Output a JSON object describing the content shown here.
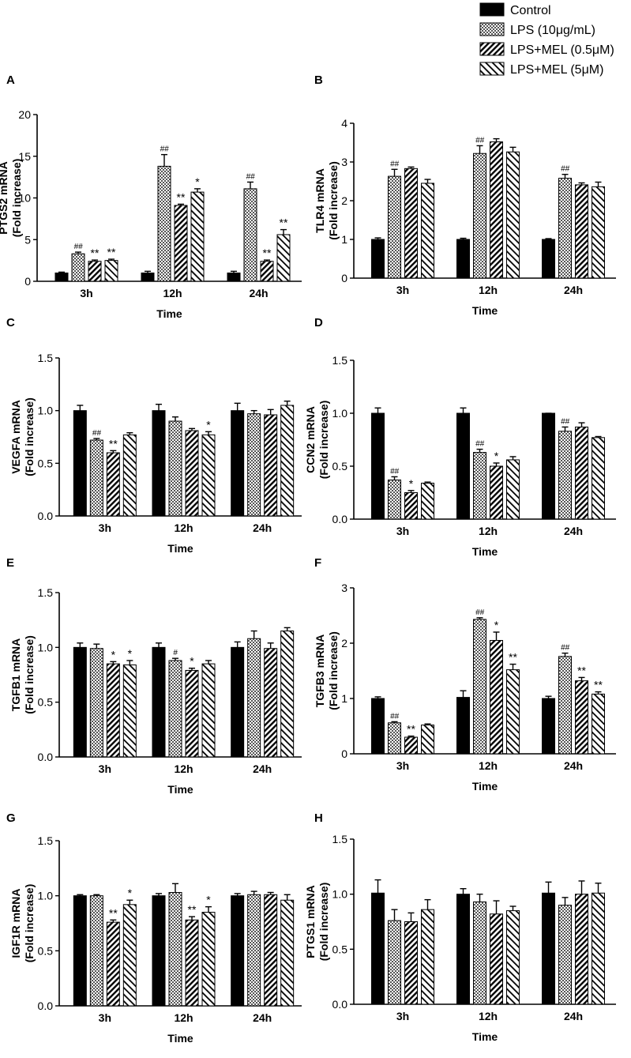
{
  "legend": {
    "entries": [
      {
        "label": "Control",
        "pattern": "solid"
      },
      {
        "label": "LPS (10μg/mL)",
        "pattern": "checker"
      },
      {
        "label": "LPS+MEL (0.5μM)",
        "pattern": "diag-dense"
      },
      {
        "label": "LPS+MEL (5μM)",
        "pattern": "diag-sparse"
      }
    ]
  },
  "colors": {
    "bar_fill": "#000000",
    "background": "#ffffff",
    "axis": "#000000"
  },
  "chart_data": [
    {
      "type": "bar",
      "panel": "A",
      "title": "",
      "xlabel": "Time",
      "ylabel_lines": [
        "PTGS2 mRNA",
        "(Fold increase)"
      ],
      "categories": [
        "3h",
        "12h",
        "24h"
      ],
      "ylim": [
        0,
        20
      ],
      "yticks": [
        "0",
        "5",
        "10",
        "15",
        "20"
      ],
      "series": [
        {
          "name": "Control",
          "values": [
            1.0,
            1.0,
            1.0
          ],
          "errors": [
            0.1,
            0.2,
            0.2
          ]
        },
        {
          "name": "LPS (10μg/mL)",
          "values": [
            3.3,
            13.8,
            11.1
          ],
          "errors": [
            0.2,
            1.4,
            0.8
          ]
        },
        {
          "name": "LPS+MEL (0.5μM)",
          "values": [
            2.4,
            9.1,
            2.4
          ],
          "errors": [
            0.15,
            0.15,
            0.15
          ]
        },
        {
          "name": "LPS+MEL (5μM)",
          "values": [
            2.5,
            10.7,
            5.6
          ],
          "errors": [
            0.15,
            0.4,
            0.6
          ]
        }
      ],
      "annotations": [
        {
          "group": 0,
          "series": 1,
          "text": "##"
        },
        {
          "group": 0,
          "series": 2,
          "text": "**"
        },
        {
          "group": 0,
          "series": 3,
          "text": "**"
        },
        {
          "group": 1,
          "series": 1,
          "text": "##"
        },
        {
          "group": 1,
          "series": 2,
          "text": "**"
        },
        {
          "group": 1,
          "series": 3,
          "text": "*"
        },
        {
          "group": 2,
          "series": 1,
          "text": "##"
        },
        {
          "group": 2,
          "series": 2,
          "text": "**"
        },
        {
          "group": 2,
          "series": 3,
          "text": "**"
        }
      ]
    },
    {
      "type": "bar",
      "panel": "B",
      "title": "",
      "xlabel": "Time",
      "ylabel_lines": [
        "TLR4 mRNA",
        "(Fold increase)"
      ],
      "categories": [
        "3h",
        "12h",
        "24h"
      ],
      "ylim": [
        0,
        4
      ],
      "yticks": [
        "0",
        "1",
        "2",
        "3",
        "4"
      ],
      "series": [
        {
          "name": "Control",
          "values": [
            1.0,
            1.0,
            1.0
          ],
          "errors": [
            0.04,
            0.03,
            0.02
          ]
        },
        {
          "name": "LPS (10μg/mL)",
          "values": [
            2.63,
            3.22,
            2.58
          ],
          "errors": [
            0.18,
            0.2,
            0.1
          ]
        },
        {
          "name": "LPS+MEL (0.5μM)",
          "values": [
            2.83,
            3.52,
            2.41
          ],
          "errors": [
            0.04,
            0.08,
            0.05
          ]
        },
        {
          "name": "LPS+MEL (5μM)",
          "values": [
            2.45,
            3.26,
            2.36
          ],
          "errors": [
            0.1,
            0.12,
            0.12
          ]
        }
      ],
      "annotations": [
        {
          "group": 0,
          "series": 1,
          "text": "##"
        },
        {
          "group": 1,
          "series": 1,
          "text": "##"
        },
        {
          "group": 2,
          "series": 1,
          "text": "##"
        }
      ]
    },
    {
      "type": "bar",
      "panel": "C",
      "title": "",
      "xlabel": "Time",
      "ylabel_lines": [
        "VEGFA mRNA",
        "(Fold increase)"
      ],
      "categories": [
        "3h",
        "12h",
        "24h"
      ],
      "ylim": [
        0,
        1.5
      ],
      "yticks": [
        "0.0",
        "0.5",
        "1.0",
        "1.5"
      ],
      "series": [
        {
          "name": "Control",
          "values": [
            1.0,
            1.0,
            1.0
          ],
          "errors": [
            0.05,
            0.06,
            0.07
          ]
        },
        {
          "name": "LPS (10μg/mL)",
          "values": [
            0.72,
            0.9,
            0.97
          ],
          "errors": [
            0.015,
            0.04,
            0.03
          ]
        },
        {
          "name": "LPS+MEL (0.5μM)",
          "values": [
            0.6,
            0.81,
            0.96
          ],
          "errors": [
            0.02,
            0.02,
            0.05
          ]
        },
        {
          "name": "LPS+MEL (5μM)",
          "values": [
            0.77,
            0.77,
            1.05
          ],
          "errors": [
            0.02,
            0.03,
            0.04
          ]
        }
      ],
      "annotations": [
        {
          "group": 0,
          "series": 1,
          "text": "##"
        },
        {
          "group": 0,
          "series": 2,
          "text": "**"
        },
        {
          "group": 1,
          "series": 3,
          "text": "*"
        }
      ]
    },
    {
      "type": "bar",
      "panel": "D",
      "title": "",
      "xlabel": "Time",
      "ylabel_lines": [
        "CCN2 mRNA",
        "(Fold increase)"
      ],
      "categories": [
        "3h",
        "12h",
        "24h"
      ],
      "ylim": [
        0,
        1.5
      ],
      "yticks": [
        "0.0",
        "0.5",
        "1.0",
        "1.5"
      ],
      "series": [
        {
          "name": "Control",
          "values": [
            1.0,
            1.0,
            1.0
          ],
          "errors": [
            0.05,
            0.05,
            0.0
          ]
        },
        {
          "name": "LPS (10μg/mL)",
          "values": [
            0.37,
            0.63,
            0.83
          ],
          "errors": [
            0.03,
            0.03,
            0.04
          ]
        },
        {
          "name": "LPS+MEL (0.5μM)",
          "values": [
            0.25,
            0.5,
            0.87
          ],
          "errors": [
            0.02,
            0.03,
            0.04
          ]
        },
        {
          "name": "LPS+MEL (5μM)",
          "values": [
            0.34,
            0.56,
            0.77
          ],
          "errors": [
            0.01,
            0.03,
            0.01
          ]
        }
      ],
      "annotations": [
        {
          "group": 0,
          "series": 1,
          "text": "##"
        },
        {
          "group": 0,
          "series": 2,
          "text": "*"
        },
        {
          "group": 1,
          "series": 1,
          "text": "##"
        },
        {
          "group": 1,
          "series": 2,
          "text": "*"
        },
        {
          "group": 2,
          "series": 1,
          "text": "##"
        }
      ]
    },
    {
      "type": "bar",
      "panel": "E",
      "title": "",
      "xlabel": "Time",
      "ylabel_lines": [
        "TGFB1 mRNA",
        "(Fold increase)"
      ],
      "categories": [
        "3h",
        "12h",
        "24h"
      ],
      "ylim": [
        0,
        1.5
      ],
      "yticks": [
        "0.0",
        "0.5",
        "1.0",
        "1.5"
      ],
      "series": [
        {
          "name": "Control",
          "values": [
            1.0,
            1.0,
            1.0
          ],
          "errors": [
            0.04,
            0.04,
            0.05
          ]
        },
        {
          "name": "LPS (10μg/mL)",
          "values": [
            0.99,
            0.88,
            1.08
          ],
          "errors": [
            0.04,
            0.02,
            0.07
          ]
        },
        {
          "name": "LPS+MEL (0.5μM)",
          "values": [
            0.85,
            0.79,
            0.99
          ],
          "errors": [
            0.02,
            0.02,
            0.05
          ]
        },
        {
          "name": "LPS+MEL (5μM)",
          "values": [
            0.84,
            0.85,
            1.15
          ],
          "errors": [
            0.04,
            0.03,
            0.03
          ]
        }
      ],
      "annotations": [
        {
          "group": 0,
          "series": 2,
          "text": "*"
        },
        {
          "group": 0,
          "series": 3,
          "text": "*"
        },
        {
          "group": 1,
          "series": 1,
          "text": "#"
        },
        {
          "group": 1,
          "series": 2,
          "text": "*"
        }
      ]
    },
    {
      "type": "bar",
      "panel": "F",
      "title": "",
      "xlabel": "Time",
      "ylabel_lines": [
        "TGFB3 mRNA",
        "(Fold increase)"
      ],
      "categories": [
        "3h",
        "12h",
        "24h"
      ],
      "ylim": [
        0,
        3
      ],
      "yticks": [
        "0",
        "1",
        "2",
        "3"
      ],
      "series": [
        {
          "name": "Control",
          "values": [
            1.0,
            1.02,
            1.0
          ],
          "errors": [
            0.03,
            0.12,
            0.04
          ]
        },
        {
          "name": "LPS (10μg/mL)",
          "values": [
            0.56,
            2.43,
            1.76
          ],
          "errors": [
            0.02,
            0.03,
            0.06
          ]
        },
        {
          "name": "LPS+MEL (0.5μM)",
          "values": [
            0.3,
            2.05,
            1.32
          ],
          "errors": [
            0.02,
            0.15,
            0.06
          ]
        },
        {
          "name": "LPS+MEL (5μM)",
          "values": [
            0.52,
            1.52,
            1.08
          ],
          "errors": [
            0.02,
            0.1,
            0.04
          ]
        }
      ],
      "annotations": [
        {
          "group": 0,
          "series": 1,
          "text": "##"
        },
        {
          "group": 0,
          "series": 2,
          "text": "**"
        },
        {
          "group": 1,
          "series": 1,
          "text": "##"
        },
        {
          "group": 1,
          "series": 2,
          "text": "*"
        },
        {
          "group": 1,
          "series": 3,
          "text": "**"
        },
        {
          "group": 2,
          "series": 1,
          "text": "##"
        },
        {
          "group": 2,
          "series": 2,
          "text": "**"
        },
        {
          "group": 2,
          "series": 3,
          "text": "**"
        }
      ]
    },
    {
      "type": "bar",
      "panel": "G",
      "title": "",
      "xlabel": "Time",
      "ylabel_lines": [
        "IGF1R mRNA",
        "(Fold increase)"
      ],
      "categories": [
        "3h",
        "12h",
        "24h"
      ],
      "ylim": [
        0,
        1.5
      ],
      "yticks": [
        "0.0",
        "0.5",
        "1.0",
        "1.5"
      ],
      "series": [
        {
          "name": "Control",
          "values": [
            1.0,
            1.0,
            1.0
          ],
          "errors": [
            0.01,
            0.02,
            0.02
          ]
        },
        {
          "name": "LPS (10μg/mL)",
          "values": [
            1.0,
            1.03,
            1.01
          ],
          "errors": [
            0.01,
            0.08,
            0.03
          ]
        },
        {
          "name": "LPS+MEL (0.5μM)",
          "values": [
            0.76,
            0.78,
            1.01
          ],
          "errors": [
            0.02,
            0.03,
            0.02
          ]
        },
        {
          "name": "LPS+MEL (5μM)",
          "values": [
            0.92,
            0.85,
            0.96
          ],
          "errors": [
            0.04,
            0.05,
            0.05
          ]
        }
      ],
      "annotations": [
        {
          "group": 0,
          "series": 2,
          "text": "**"
        },
        {
          "group": 0,
          "series": 3,
          "text": "*"
        },
        {
          "group": 1,
          "series": 2,
          "text": "**"
        },
        {
          "group": 1,
          "series": 3,
          "text": "*"
        }
      ]
    },
    {
      "type": "bar",
      "panel": "H",
      "title": "",
      "xlabel": "Time",
      "ylabel_lines": [
        "PTGS1 mRNA",
        "(Fold increase)"
      ],
      "categories": [
        "3h",
        "12h",
        "24h"
      ],
      "ylim": [
        0,
        1.5
      ],
      "yticks": [
        "0.0",
        "0.5",
        "1.0",
        "1.5"
      ],
      "series": [
        {
          "name": "Control",
          "values": [
            1.01,
            1.0,
            1.01
          ],
          "errors": [
            0.12,
            0.05,
            0.1
          ]
        },
        {
          "name": "LPS (10μg/mL)",
          "values": [
            0.76,
            0.93,
            0.9
          ],
          "errors": [
            0.1,
            0.07,
            0.07
          ]
        },
        {
          "name": "LPS+MEL (0.5μM)",
          "values": [
            0.75,
            0.82,
            1.0
          ],
          "errors": [
            0.08,
            0.12,
            0.12
          ]
        },
        {
          "name": "LPS+MEL (5μM)",
          "values": [
            0.86,
            0.85,
            1.01
          ],
          "errors": [
            0.09,
            0.04,
            0.09
          ]
        }
      ],
      "annotations": []
    }
  ]
}
